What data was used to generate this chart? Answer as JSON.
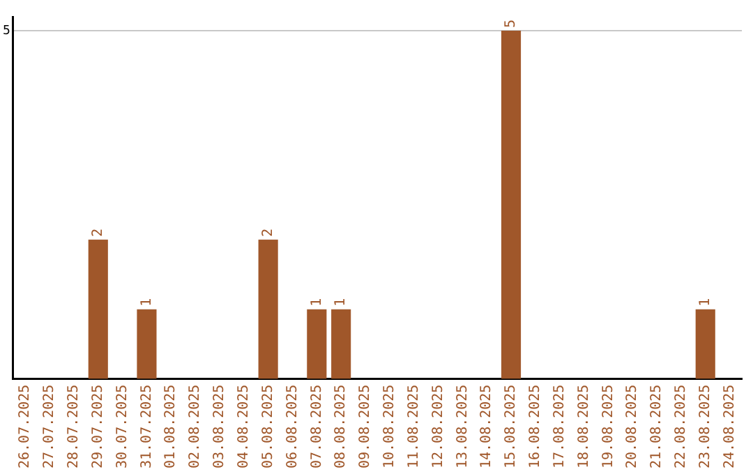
{
  "chart_data": {
    "type": "bar",
    "categories": [
      "26.07.2025",
      "27.07.2025",
      "28.07.2025",
      "29.07.2025",
      "30.07.2025",
      "31.07.2025",
      "01.08.2025",
      "02.08.2025",
      "03.08.2025",
      "04.08.2025",
      "05.08.2025",
      "06.08.2025",
      "07.08.2025",
      "08.08.2025",
      "09.08.2025",
      "10.08.2025",
      "11.08.2025",
      "12.08.2025",
      "13.08.2025",
      "14.08.2025",
      "15.08.2025",
      "16.08.2025",
      "17.08.2025",
      "18.08.2025",
      "19.08.2025",
      "20.08.2025",
      "21.08.2025",
      "22.08.2025",
      "23.08.2025",
      "24.08.2025"
    ],
    "values": [
      0,
      0,
      0,
      2,
      0,
      1,
      0,
      0,
      0,
      0,
      2,
      0,
      1,
      1,
      0,
      0,
      0,
      0,
      0,
      0,
      5,
      0,
      0,
      0,
      0,
      0,
      0,
      0,
      1,
      0
    ],
    "value_labels": [
      null,
      null,
      null,
      "2",
      null,
      "1",
      null,
      null,
      null,
      null,
      "2",
      null,
      "1",
      "1",
      null,
      null,
      null,
      null,
      null,
      null,
      "5",
      null,
      null,
      null,
      null,
      null,
      null,
      null,
      "1",
      null
    ],
    "color": "#a0572a",
    "ylim": [
      0,
      5.2
    ],
    "yticks": [
      5
    ],
    "grid": "y",
    "legend": false
  }
}
